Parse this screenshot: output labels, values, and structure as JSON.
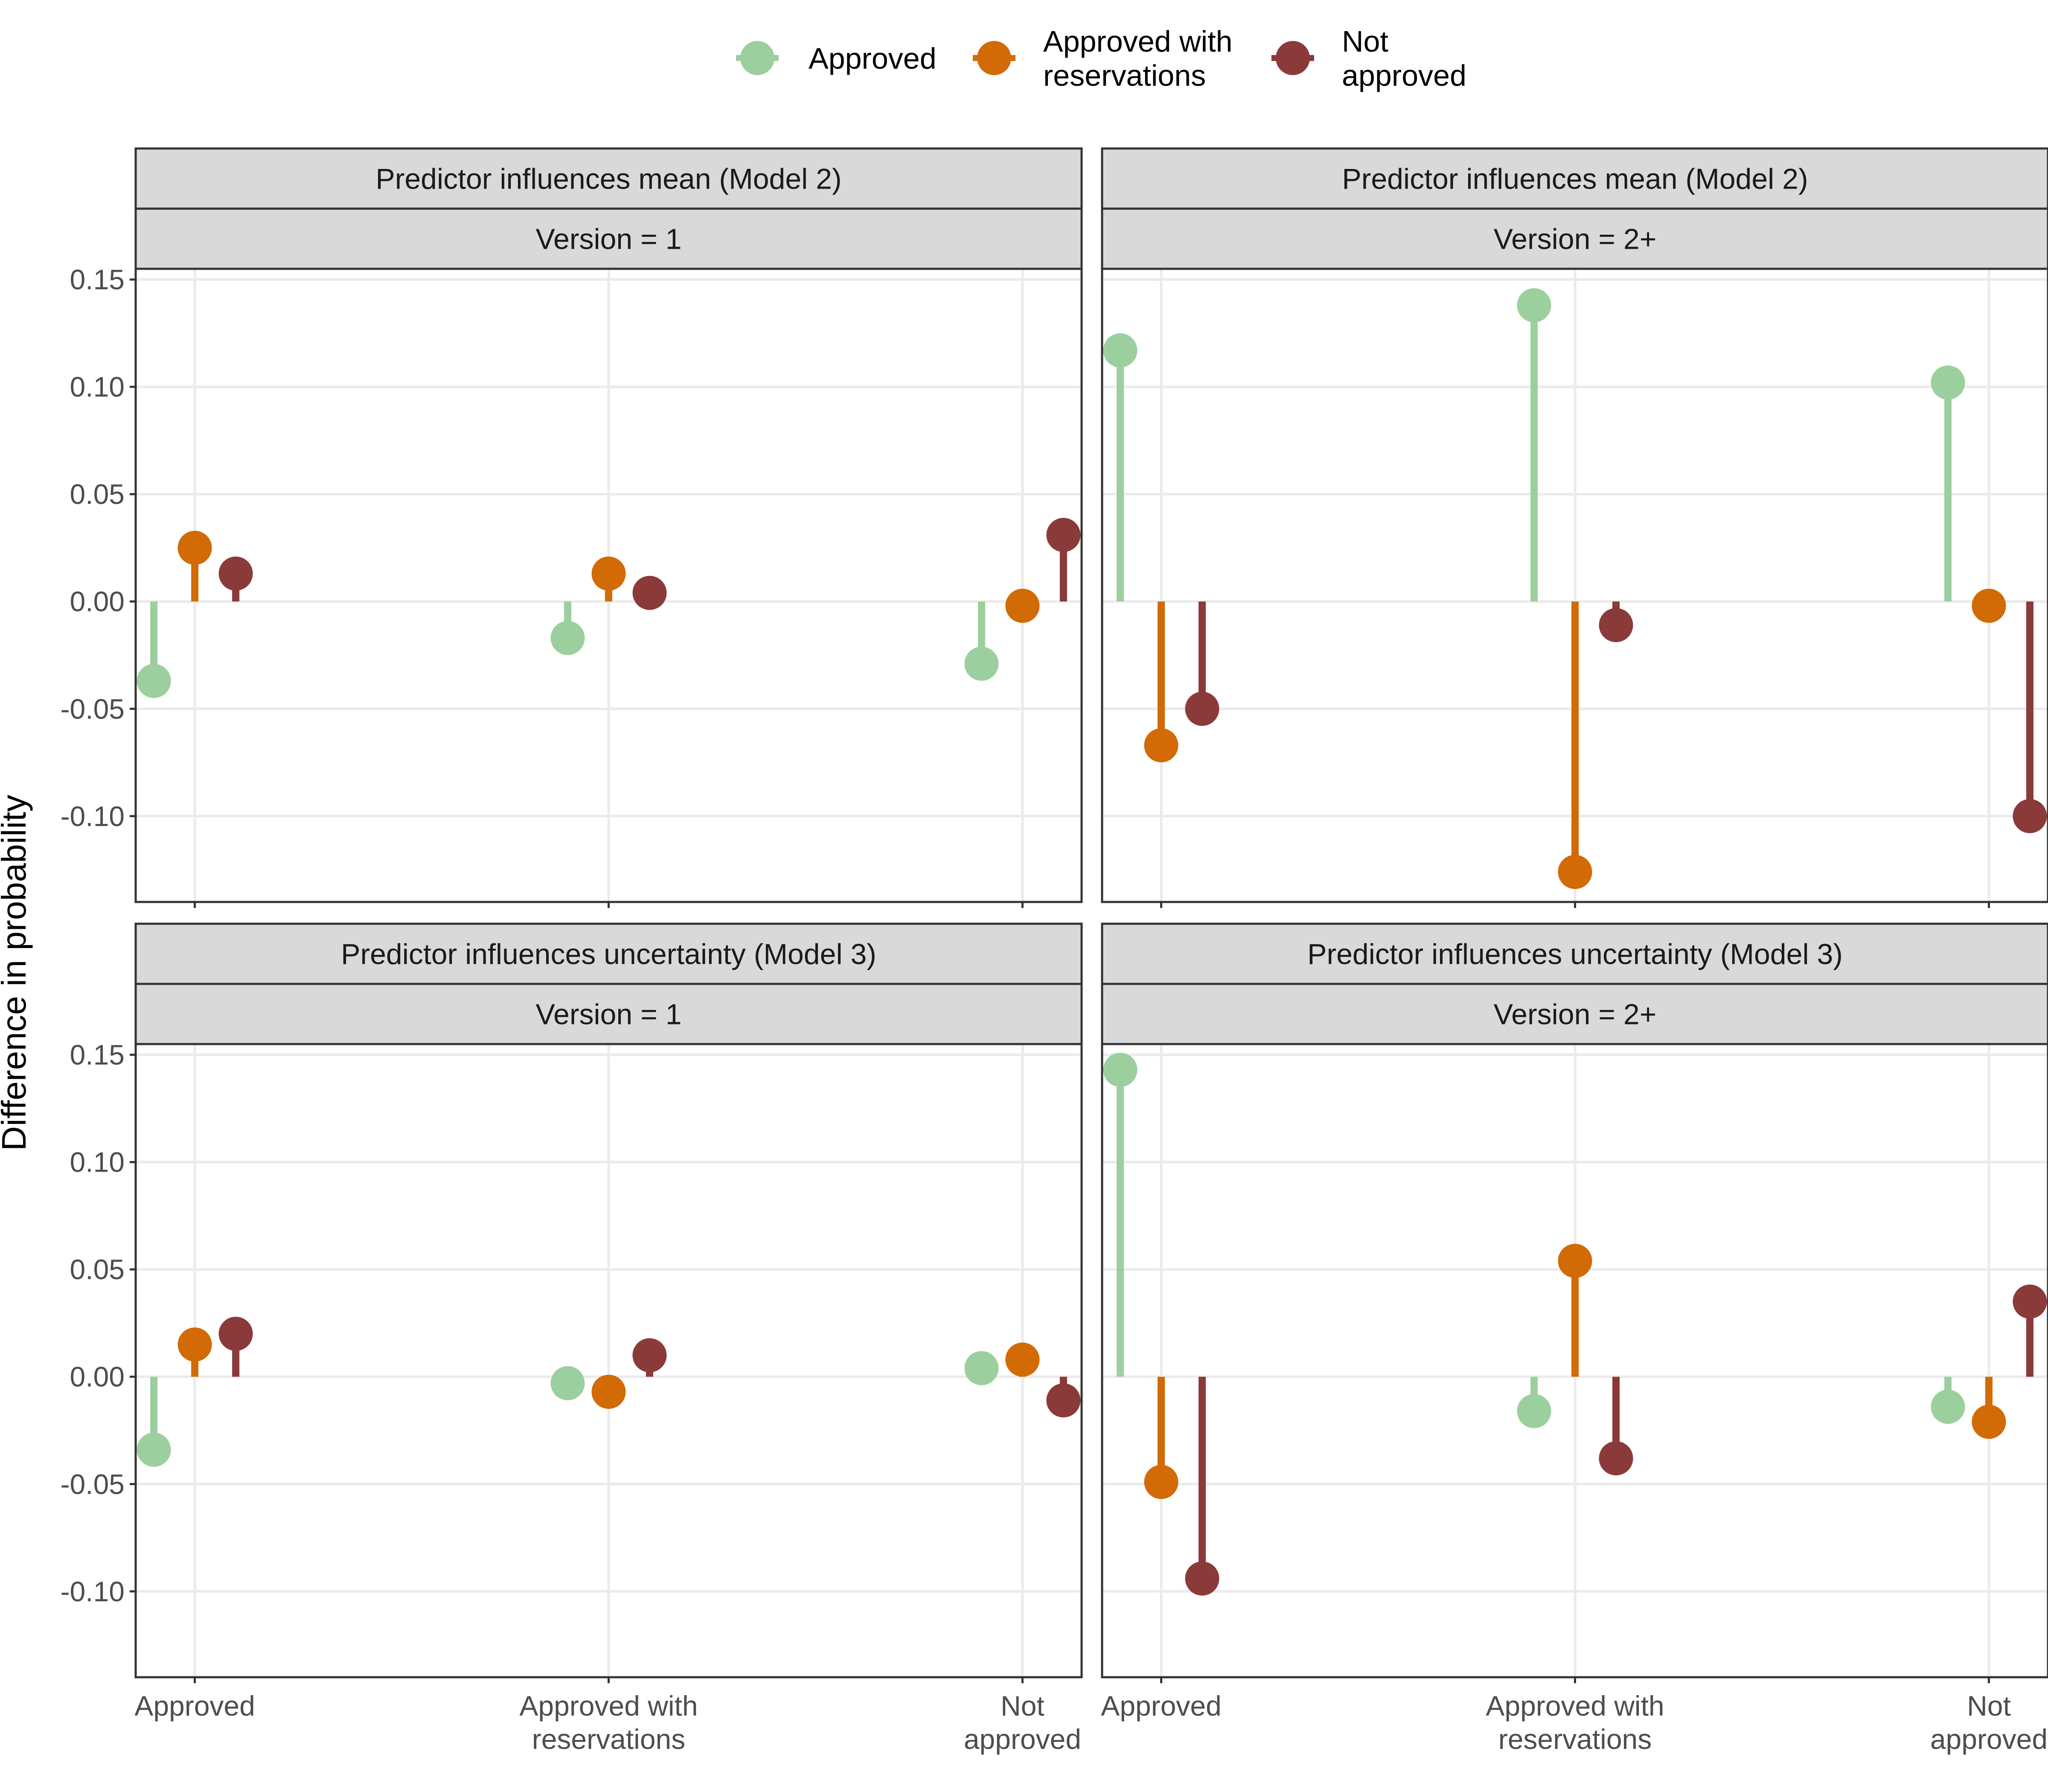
{
  "chart_data": {
    "type": "lollipop",
    "ylabel": "Difference in probability",
    "ylim": [
      -0.14,
      0.155
    ],
    "yticks": [
      0.15,
      0.1,
      0.05,
      0.0,
      -0.05,
      -0.1
    ],
    "ytick_labels": [
      "0.15",
      "0.10",
      "0.05",
      "0.00",
      "-0.05",
      "-0.10"
    ],
    "categories": [
      [
        "Approved"
      ],
      [
        "Approved with",
        "reservations"
      ],
      [
        "Not",
        "approved"
      ]
    ],
    "legend": {
      "position": "top",
      "entries": [
        {
          "key": "approved",
          "label": [
            "Approved"
          ],
          "color": "#9ccf9e"
        },
        {
          "key": "reservations",
          "label": [
            "Approved with",
            "reservations"
          ],
          "color": "#d26a06"
        },
        {
          "key": "not_approved",
          "label": [
            "Not",
            "approved"
          ],
          "color": "#8b3a3a"
        }
      ]
    },
    "panels": [
      {
        "strip_top": "Predictor influences mean (Model 2)",
        "strip_bottom": "Version = 1",
        "values": {
          "approved": [
            -0.037,
            -0.017,
            -0.029
          ],
          "reservations": [
            0.025,
            0.013,
            -0.002
          ],
          "not_approved": [
            0.013,
            0.004,
            0.031
          ]
        }
      },
      {
        "strip_top": "Predictor influences mean (Model 2)",
        "strip_bottom": "Version = 2+",
        "values": {
          "approved": [
            0.117,
            0.138,
            0.102
          ],
          "reservations": [
            -0.067,
            -0.126,
            -0.002
          ],
          "not_approved": [
            -0.05,
            -0.011,
            -0.1
          ]
        }
      },
      {
        "strip_top": "Predictor influences uncertainty (Model 3)",
        "strip_bottom": "Version = 1",
        "values": {
          "approved": [
            -0.034,
            -0.003,
            0.004
          ],
          "reservations": [
            0.015,
            -0.007,
            0.008
          ],
          "not_approved": [
            0.02,
            0.01,
            -0.011
          ]
        }
      },
      {
        "strip_top": "Predictor influences uncertainty (Model 3)",
        "strip_bottom": "Version = 2+",
        "values": {
          "approved": [
            0.143,
            -0.016,
            -0.014
          ],
          "reservations": [
            -0.049,
            0.054,
            -0.021
          ],
          "not_approved": [
            -0.094,
            -0.038,
            0.035
          ]
        }
      }
    ]
  }
}
